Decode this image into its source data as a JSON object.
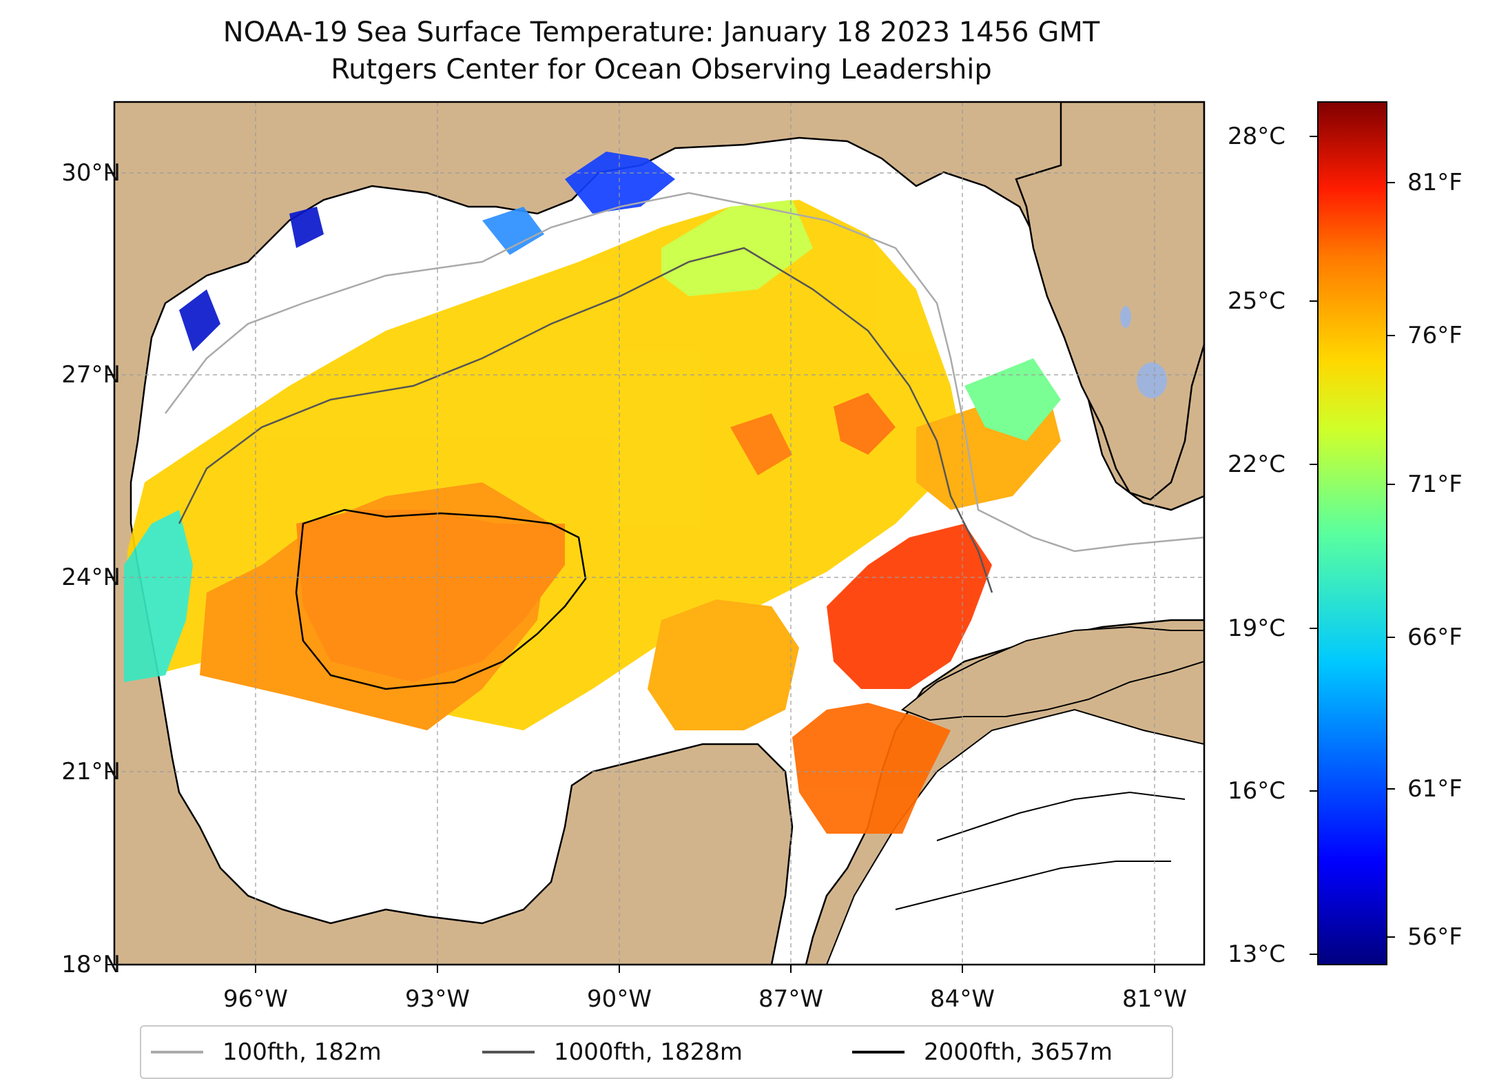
{
  "title": "NOAA-19 Sea Surface Temperature: January 18 2023 1456 GMT",
  "subtitle": "Rutgers Center for Ocean Observing Leadership",
  "lat_labels": [
    "30°N",
    "27°N",
    "24°N",
    "21°N",
    "18°N"
  ],
  "lon_labels": [
    "96°W",
    "93°W",
    "90°W",
    "87°W",
    "84°W",
    "81°W"
  ],
  "colorbar": {
    "celsius_labels": [
      "28°C",
      "25°C",
      "22°C",
      "19°C",
      "16°C",
      "13°C"
    ],
    "fahrenheit_labels": [
      "81°F",
      "76°F",
      "71°F",
      "66°F",
      "61°F",
      "56°F"
    ],
    "colormap": "jet",
    "range_celsius": [
      12.8,
      29.0
    ]
  },
  "legend": [
    {
      "label": "100fth, 182m",
      "color": "#aaaaaa"
    },
    {
      "label": "1000fth, 1828m",
      "color": "#555555"
    },
    {
      "label": "2000fth, 3657m",
      "color": "#000000"
    }
  ],
  "colors": {
    "land": "#d2b48c",
    "water_no_data": "#ffffff",
    "inland_water": "#9fb4dd"
  },
  "chart_data": {
    "type": "heatmap",
    "title": "NOAA-19 Sea Surface Temperature: January 18 2023 1456 GMT",
    "subtitle": "Rutgers Center for Ocean Observing Leadership",
    "lon_range": [
      -98.0,
      -80.5
    ],
    "lat_range": [
      18.0,
      31.0
    ],
    "lat_ticks": [
      30,
      27,
      24,
      21,
      18
    ],
    "lon_ticks": [
      -96,
      -93,
      -90,
      -87,
      -84,
      -81
    ],
    "grid": true,
    "colorbar_range_c": [
      12.8,
      29.0
    ],
    "colorbar_ticks_c": [
      28,
      25,
      22,
      19,
      16,
      13
    ],
    "colorbar_ticks_f": [
      81,
      76,
      71,
      66,
      61,
      56
    ],
    "legend_placement": "bottom-center",
    "contours": [
      {
        "name": "100fth, 182m",
        "depth_m": 182
      },
      {
        "name": "1000fth, 1828m",
        "depth_m": 1828
      },
      {
        "name": "2000fth, 3657m",
        "depth_m": 3657
      }
    ]
  }
}
